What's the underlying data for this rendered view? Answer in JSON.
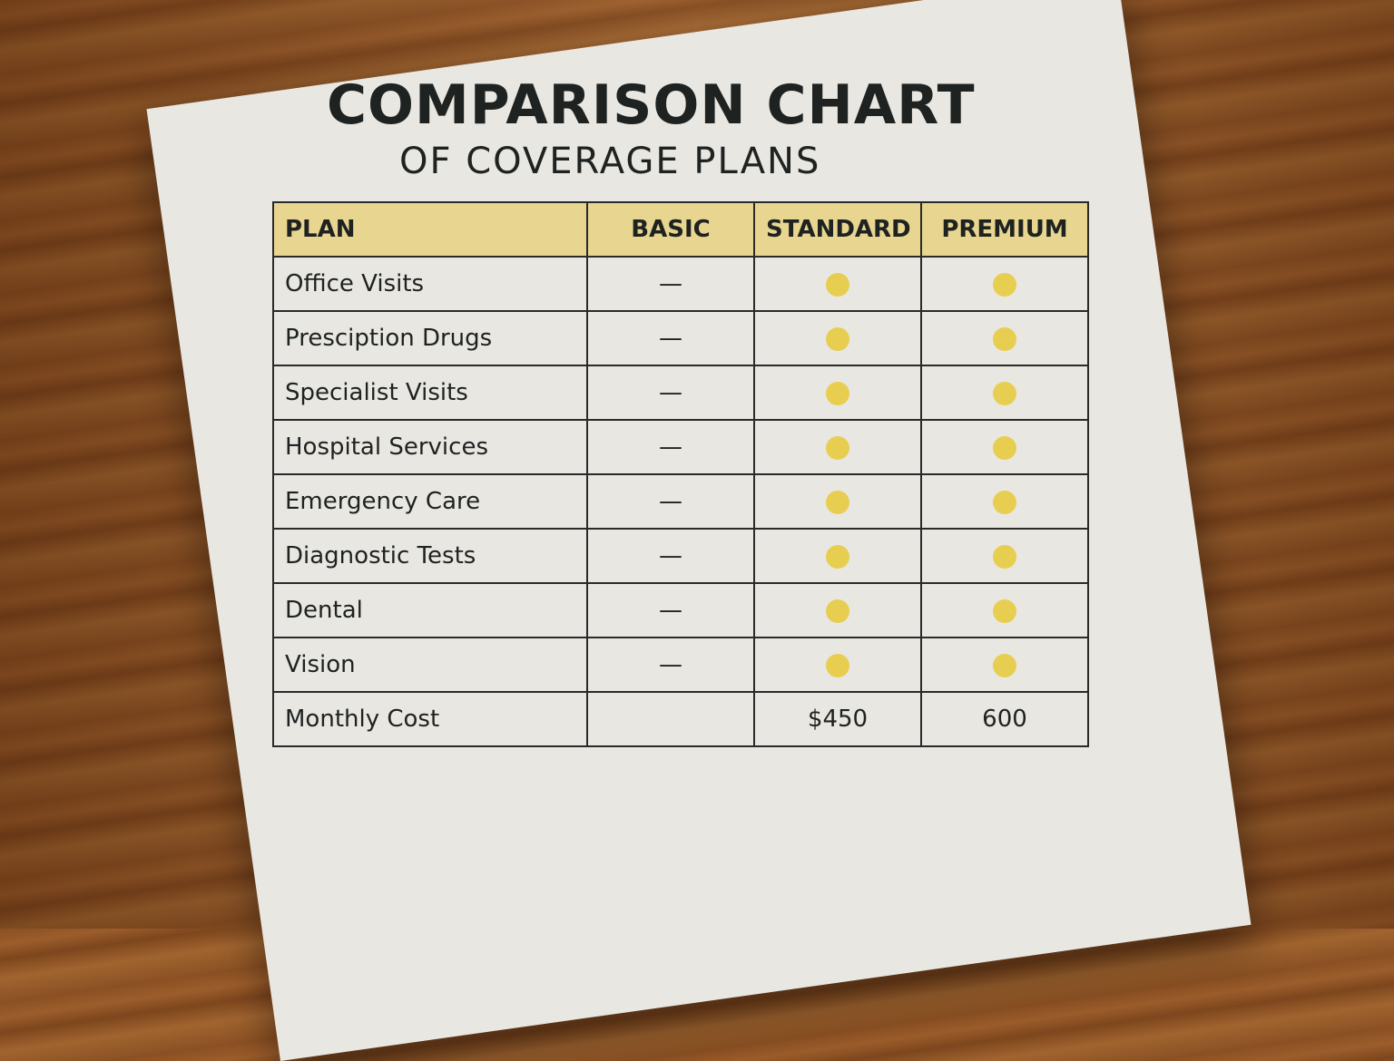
{
  "title": "COMPARISON CHART",
  "subtitle": "OF COVERAGE PLANS",
  "accent_color": "#e8ce50",
  "header_color": "#e8d590",
  "columns": [
    "PLAN",
    "BASIC",
    "STANDARD",
    "PREMIUM"
  ],
  "rows": [
    {
      "label": "Office Visits",
      "basic": "—",
      "standard": "dot",
      "premium": "dot"
    },
    {
      "label": "Presciption Drugs",
      "basic": "—",
      "standard": "dot",
      "premium": "dot"
    },
    {
      "label": "Specialist Visits",
      "basic": "—",
      "standard": "dot",
      "premium": "dot"
    },
    {
      "label": "Hospital Services",
      "basic": "—",
      "standard": "dot",
      "premium": "dot"
    },
    {
      "label": "Emergency Care",
      "basic": "—",
      "standard": "dot",
      "premium": "dot"
    },
    {
      "label": "Diagnostic Tests",
      "basic": "—",
      "standard": "dot",
      "premium": "dot"
    },
    {
      "label": "Dental",
      "basic": "—",
      "standard": "dot",
      "premium": "dot"
    },
    {
      "label": "Vision",
      "basic": "—",
      "standard": "dot",
      "premium": "dot"
    },
    {
      "label": "Monthly Cost",
      "basic": "",
      "standard": "$450",
      "premium": "600"
    }
  ]
}
